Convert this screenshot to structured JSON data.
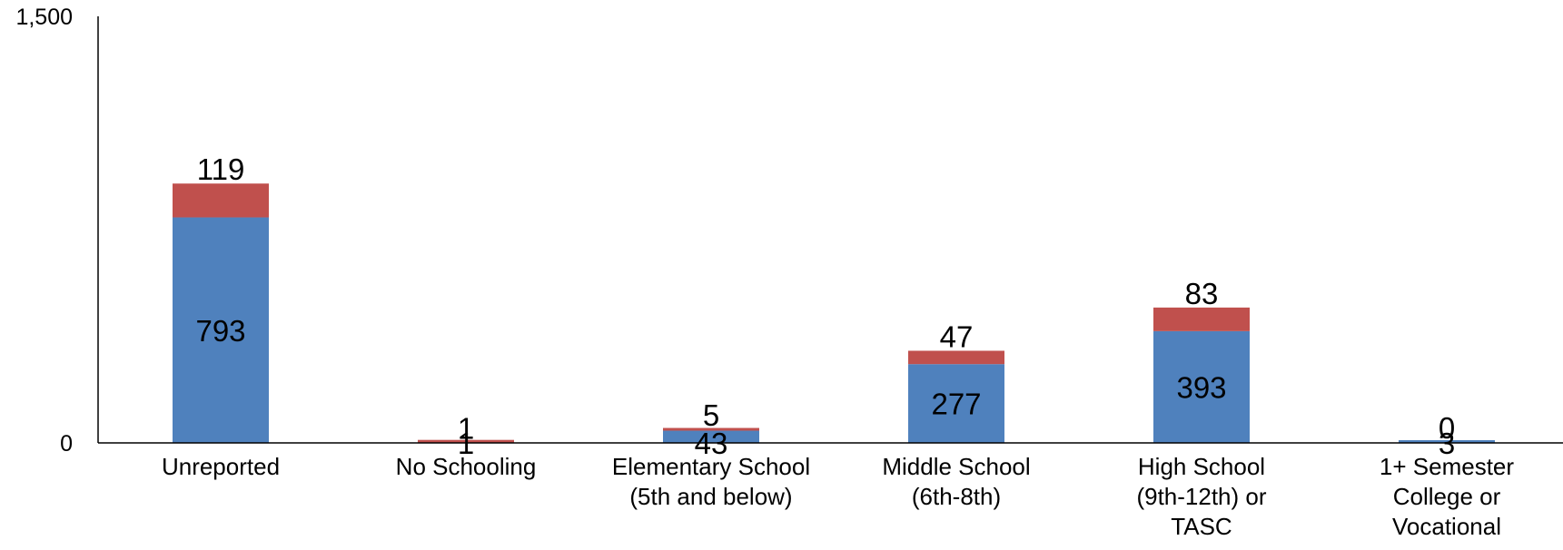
{
  "chart_data": {
    "type": "bar",
    "stacked": true,
    "categories": [
      [
        "Unreported"
      ],
      [
        "No Schooling"
      ],
      [
        "Elementary School",
        "(5th and below)"
      ],
      [
        "Middle School",
        "(6th-8th)"
      ],
      [
        "High School",
        "(9th-12th) or",
        "TASC"
      ],
      [
        "1+ Semester",
        "College or",
        "Vocational"
      ]
    ],
    "series": [
      {
        "values": [
          793,
          1,
          43,
          277,
          393,
          3
        ],
        "color": "#4F81BD"
      },
      {
        "values": [
          119,
          1,
          5,
          47,
          83,
          0
        ],
        "color": "#C0504D"
      }
    ],
    "ylim": [
      0,
      1500
    ],
    "yticks": [
      {
        "value": 0,
        "label": "0"
      },
      {
        "value": 1500,
        "label": "1,500"
      }
    ],
    "grid": false,
    "legend": "none"
  }
}
